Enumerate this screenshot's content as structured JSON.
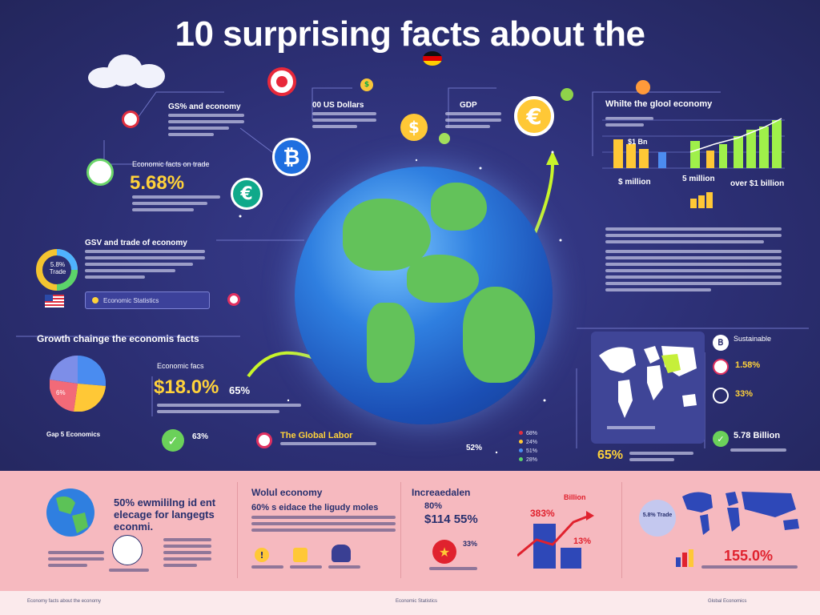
{
  "title": "10 surprising facts about the",
  "facts_left": {
    "heading_1": "GS% and economy",
    "stat_1": "5.68%",
    "sub_1": "Economic facts on trade",
    "heading_2": "GSV and trade of economy",
    "donut_label": "5.8% Trade",
    "search_text": "Economic Statistics"
  },
  "facts_top": {
    "us_dollars": "00 US Dollars",
    "gdp": "GDP",
    "global_title": "Whilte the glool economy",
    "bars_left_label": "$1 Bn",
    "bars_value_1": "$ million",
    "bars_value_2": "5 million",
    "bars_value_3": "over $1 billion"
  },
  "growth": {
    "heading": "Growth chainge the economis facts",
    "label": "Economic facs",
    "stat": "$18.0%",
    "stat_side": "65%",
    "pie_label": "6%",
    "pie_caption": "Gap 5 Economics",
    "check_label": "63%",
    "badge_title": "The Global Labor",
    "pct_1": "52%",
    "legend": [
      "68%",
      "24%",
      "51%",
      "28%"
    ]
  },
  "right_side": {
    "map_stat": "65%",
    "items": [
      "Sustainable",
      "1.58%",
      "33%",
      "5.78 Billion"
    ]
  },
  "bottom": {
    "c1_title": "50% ewmililng id ent elecage for langegts econmi.",
    "c2_title": "Wolul economy",
    "c2_sub": "60% s eidace the ligudy moles",
    "c3_title": "Increaedalen",
    "c3_stat_a": "80%",
    "c3_stat_b": "$114 55%",
    "c3_chart_a": "383%",
    "c3_chart_b": "Billion",
    "c3_chart_c": "13%",
    "c3_small": "33%",
    "c4_big": "155.0%",
    "c4_pin": "5.8% Trade"
  },
  "footer": {
    "left": "Economy facts about the economy",
    "center": "Economic Statistics",
    "right": "Global Economics"
  },
  "colors": {
    "bg": "#2c2f74",
    "accent_yellow": "#ffd23a",
    "accent_green": "#b7ef3a",
    "bottom_bg": "#f6b9bf",
    "red": "#e0222e"
  }
}
